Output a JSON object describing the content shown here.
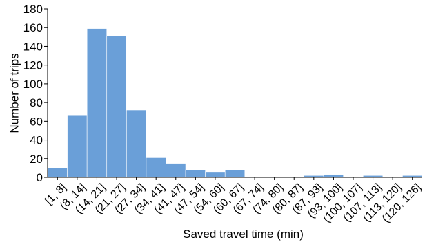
{
  "chart_data": {
    "type": "bar",
    "title": "",
    "xlabel": "Saved travel time (min)",
    "ylabel": "Number of trips",
    "ylim": [
      0,
      180
    ],
    "yticks": [
      0,
      20,
      40,
      60,
      80,
      100,
      120,
      140,
      160,
      180
    ],
    "grid": false,
    "bar_color": "#6a9fd8",
    "categories": [
      "[1, 8]",
      "(8, 14]",
      "(14, 21]",
      "(21, 27]",
      "(27, 34]",
      "(34, 41]",
      "(41, 47]",
      "(47, 54]",
      "(54, 60]",
      "(60, 67]",
      "(67, 74]",
      "(74, 80]",
      "(80, 87]",
      "(87, 93]",
      "(93, 100]",
      "(100, 107]",
      "(107, 113]",
      "(113, 120]",
      "(120, 126]"
    ],
    "values": [
      10,
      66,
      159,
      151,
      72,
      21,
      15,
      8,
      6,
      8,
      0,
      0,
      0,
      2,
      3,
      0,
      2,
      0,
      2
    ]
  }
}
